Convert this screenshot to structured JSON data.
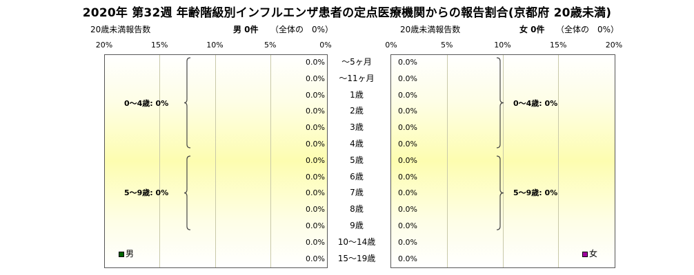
{
  "chart_data": {
    "type": "bar",
    "title": "2020年 第32週 年齢階級別インフルエンザ患者の定点医療機関からの報告割合(京都府 20歳未満)",
    "categories": [
      "～5ヶ月",
      "～11ヶ月",
      "1歳",
      "2歳",
      "3歳",
      "4歳",
      "5歳",
      "6歳",
      "7歳",
      "8歳",
      "9歳",
      "10～14歳",
      "15～19歳"
    ],
    "xlim": [
      0,
      20
    ],
    "ticks": [
      "0%",
      "5%",
      "10%",
      "15%",
      "20%"
    ],
    "male": {
      "header_left": "20歳未満報告数",
      "header_main": "男 0件",
      "header_sub": "（全体の　0%）",
      "legend": "男",
      "color": "#006400",
      "values": [
        0,
        0,
        0,
        0,
        0,
        0,
        0,
        0,
        0,
        0,
        0,
        0,
        0
      ],
      "value_labels": [
        "0.0%",
        "0.0%",
        "0.0%",
        "0.0%",
        "0.0%",
        "0.0%",
        "0.0%",
        "0.0%",
        "0.0%",
        "0.0%",
        "0.0%",
        "0.0%",
        "0.0%"
      ],
      "groups": [
        {
          "label": "0～4歳: 0%",
          "from": 0,
          "to": 5
        },
        {
          "label": "5～9歳: 0%",
          "from": 6,
          "to": 10
        }
      ]
    },
    "female": {
      "header_left": "20歳未満報告数",
      "header_main": "女 0件",
      "header_sub": "（全体の　0%）",
      "legend": "女",
      "color": "#a000a0",
      "values": [
        0,
        0,
        0,
        0,
        0,
        0,
        0,
        0,
        0,
        0,
        0,
        0,
        0
      ],
      "value_labels": [
        "0.0%",
        "0.0%",
        "0.0%",
        "0.0%",
        "0.0%",
        "0.0%",
        "0.0%",
        "0.0%",
        "0.0%",
        "0.0%",
        "0.0%",
        "0.0%",
        "0.0%"
      ],
      "groups": [
        {
          "label": "0～4歳: 0%",
          "from": 0,
          "to": 5
        },
        {
          "label": "5～9歳: 0%",
          "from": 6,
          "to": 10
        }
      ]
    }
  }
}
